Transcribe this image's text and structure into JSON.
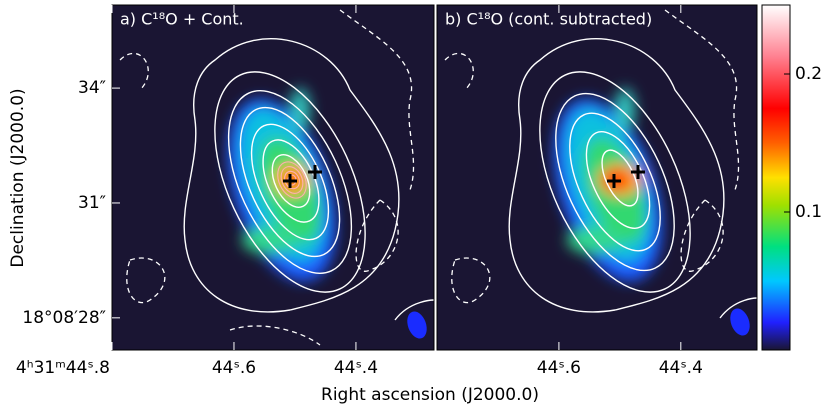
{
  "chart_data": [
    {
      "type": "image",
      "title": "a) C¹⁸O + Cont.",
      "xlim": [
        44.8,
        44.272
      ],
      "xticks": [
        {
          "value": 44.8,
          "label": "4ʰ31ᵐ44ˢ.8"
        },
        {
          "value": 44.6,
          "label": "44ˢ.6"
        },
        {
          "value": 44.4,
          "label": "44ˢ.4"
        }
      ],
      "ylim": [
        27.16,
        36.17
      ],
      "yticks": [
        {
          "value": 28,
          "label": "18°08′28″"
        },
        {
          "value": 31,
          "label": "31″"
        },
        {
          "value": 34,
          "label": "34″"
        }
      ],
      "xlabel": "Right ascension (J2000.0)",
      "ylabel": "Declination (J2000.0)"
    },
    {
      "type": "image",
      "title": "b) C¹⁸O (cont. subtracted)",
      "xlim": [
        44.8,
        44.275
      ],
      "xticks": [
        {
          "value": 44.6,
          "label": "44ˢ.6"
        },
        {
          "value": 44.4,
          "label": "44ˢ.4"
        }
      ]
    },
    {
      "type": "colorbar",
      "ylim": [
        0,
        0.25
      ],
      "yticks": [
        0.1,
        0.2
      ]
    }
  ]
}
